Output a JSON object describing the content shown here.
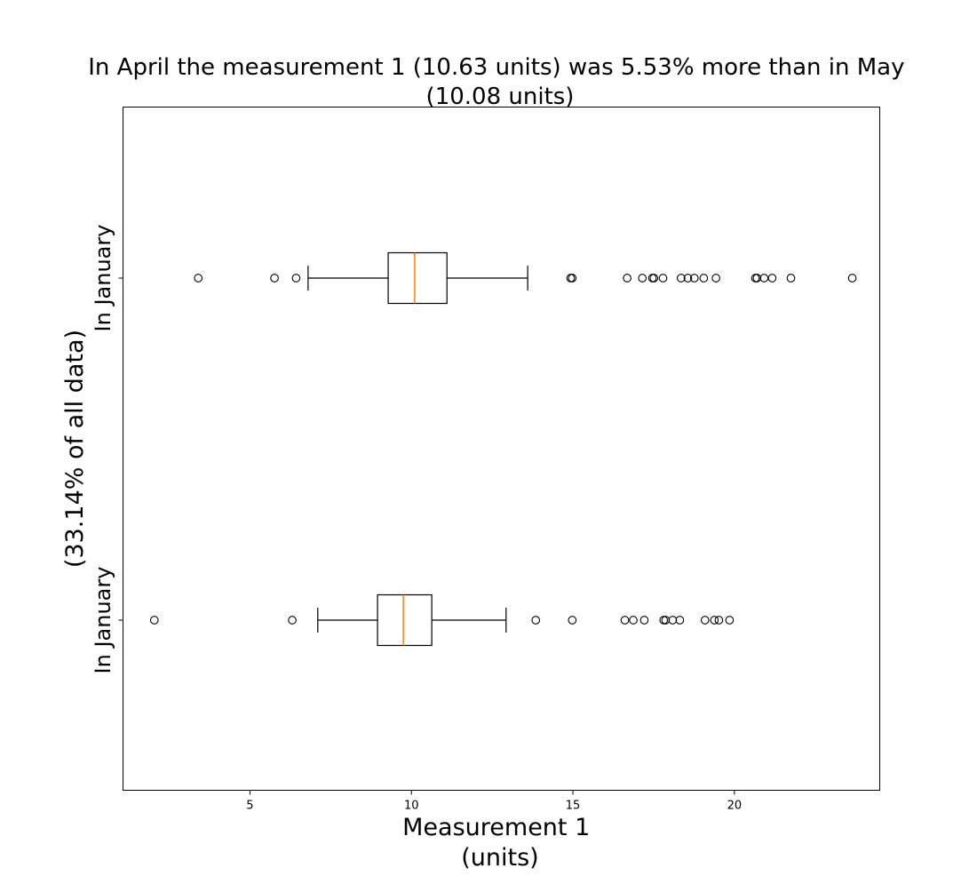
{
  "chart_data": {
    "type": "boxplot",
    "orientation": "horizontal",
    "title": "In April the measurement 1 (10.63 units) was 5.53% more than in May\n(10.08 units)",
    "xlabel": "Measurement 1\n(units)",
    "ylabel": "(33.14% of all data)",
    "xlim": [
      1.07,
      24.5
    ],
    "x_ticks": [
      5,
      10,
      15,
      20
    ],
    "grid": false,
    "legend": "none",
    "median_color": "#ff7f0e",
    "box_color": "#000000",
    "boxes": [
      {
        "label": "In January",
        "whisker_low": 6.8,
        "q1": 9.28,
        "median": 10.1,
        "q3": 11.1,
        "whisker_high": 13.6,
        "outliers": [
          3.4,
          5.76,
          6.43,
          14.93,
          14.98,
          16.68,
          17.15,
          17.46,
          17.51,
          17.79,
          18.35,
          18.56,
          18.76,
          19.05,
          19.43,
          20.65,
          20.7,
          20.92,
          21.17,
          21.75,
          23.65
        ]
      },
      {
        "label": "In January",
        "whisker_low": 7.1,
        "q1": 8.95,
        "median": 9.75,
        "q3": 10.63,
        "whisker_high": 12.93,
        "outliers": [
          2.04,
          6.31,
          13.85,
          14.98,
          16.61,
          16.87,
          17.21,
          17.81,
          17.87,
          18.09,
          18.31,
          19.09,
          19.38,
          19.52,
          19.85
        ]
      }
    ]
  }
}
